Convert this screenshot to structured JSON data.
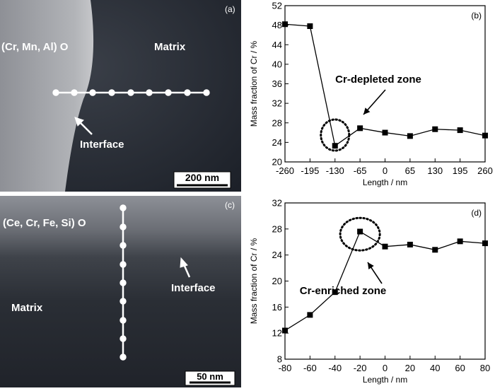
{
  "panel_a": {
    "letter": "(a)",
    "label_oxide": "(Cr, Mn, Al) O",
    "label_matrix": "Matrix",
    "label_interface": "Interface",
    "scalebar": "200 nm"
  },
  "panel_c": {
    "letter": "(c)",
    "label_oxide": "(Ce, Cr, Fe, Si) O",
    "label_matrix": "Matrix",
    "label_interface": "Interface",
    "scalebar": "50 nm"
  },
  "chart_data": [
    {
      "type": "line",
      "panel_label": "(b)",
      "xlabel": "Length / nm",
      "ylabel": "Mass fraction of Cr / %",
      "x": [
        -260,
        -195,
        -130,
        -65,
        0,
        65,
        130,
        195,
        260
      ],
      "y": [
        48.2,
        47.8,
        23.3,
        26.9,
        26.0,
        25.3,
        26.7,
        26.5,
        25.4
      ],
      "xticks": [
        -260,
        -195,
        -130,
        -65,
        0,
        65,
        130,
        195,
        260
      ],
      "yticks": [
        20,
        24,
        28,
        32,
        36,
        40,
        44,
        48,
        52
      ],
      "xlim": [
        -260,
        260
      ],
      "ylim": [
        20,
        52
      ],
      "annotation": "Cr-depleted zone",
      "marker": "square",
      "grid": false
    },
    {
      "type": "line",
      "panel_label": "(d)",
      "xlabel": "Length / nm",
      "ylabel": "Mass fraction of Cr / %",
      "x": [
        -80,
        -60,
        -40,
        -20,
        0,
        20,
        40,
        60,
        80
      ],
      "y": [
        12.4,
        14.8,
        18.3,
        27.6,
        25.3,
        25.6,
        24.8,
        26.1,
        25.8
      ],
      "xticks": [
        -80,
        -60,
        -40,
        -20,
        0,
        20,
        40,
        60,
        80
      ],
      "yticks": [
        8,
        12,
        16,
        20,
        24,
        28,
        32
      ],
      "xlim": [
        -80,
        80
      ],
      "ylim": [
        8,
        32
      ],
      "annotation": "Cr-enriched zone",
      "marker": "square",
      "grid": false
    }
  ]
}
